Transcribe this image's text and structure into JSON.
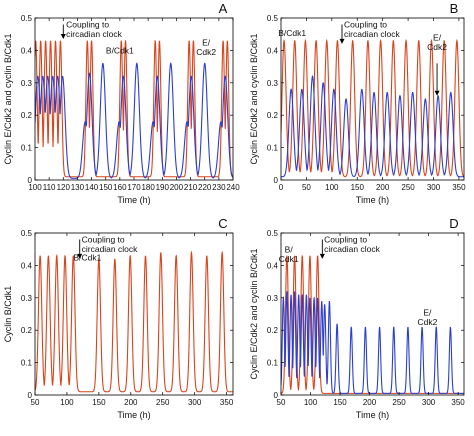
{
  "colors": {
    "cyclin_B_Cdk1": "#d9441c",
    "cyclin_E_Cdk2": "#2a3fd1",
    "axis": "#000000"
  },
  "chart_data": [
    {
      "id": "A",
      "type": "line",
      "panel_label": "A",
      "xlabel": "Time (h)",
      "ylabel": "Cyclin E/Cdk2 and cyclin B/Cdk1",
      "xlim": [
        100,
        240
      ],
      "ylim": [
        0,
        0.5
      ],
      "xticks": [
        100,
        110,
        120,
        130,
        140,
        150,
        160,
        170,
        180,
        190,
        200,
        210,
        220,
        230,
        240
      ],
      "yticks": [
        0,
        0.1,
        0.2,
        0.3,
        0.4,
        0.5
      ],
      "ytick_labels": [
        "0",
        "0.1",
        "0.2",
        "0.3",
        "0.4",
        "0.5"
      ],
      "annotations": [
        {
          "lines": [
            "Coupling to",
            "circadian clock"
          ],
          "arrow_x": 120,
          "arrow_from_y": 0.48,
          "arrow_to_y": 0.435,
          "text_x": 122,
          "text_y": 0.47
        },
        {
          "lines": [
            "B/Cdk1"
          ],
          "text_x": 160,
          "text_y": 0.39
        },
        {
          "lines": [
            "E/",
            "Cdk2"
          ],
          "text_x": 221,
          "text_y": 0.415
        }
      ],
      "series": [
        {
          "name": "B/Cdk1",
          "color": "#d9441c",
          "peaks": [
            {
              "t": 100.5,
              "h": 0.43
            },
            {
              "t": 104,
              "h": 0.43
            },
            {
              "t": 107.5,
              "h": 0.43
            },
            {
              "t": 111,
              "h": 0.43
            },
            {
              "t": 114.5,
              "h": 0.43
            },
            {
              "t": 118,
              "h": 0.43
            },
            {
              "t": 137,
              "h": 0.43
            },
            {
              "t": 140,
              "h": 0.43
            },
            {
              "t": 161,
              "h": 0.43
            },
            {
              "t": 164,
              "h": 0.43
            },
            {
              "t": 185,
              "h": 0.43
            },
            {
              "t": 188,
              "h": 0.43
            },
            {
              "t": 209,
              "h": 0.43
            },
            {
              "t": 212,
              "h": 0.43
            },
            {
              "t": 233,
              "h": 0.43
            },
            {
              "t": 236,
              "h": 0.43
            }
          ],
          "width": 1.0,
          "baseline": 0.01
        },
        {
          "name": "E/Cdk2",
          "color": "#2a3fd1",
          "peaks": [
            {
              "t": 102,
              "h": 0.32
            },
            {
              "t": 105.5,
              "h": 0.32
            },
            {
              "t": 109,
              "h": 0.32
            },
            {
              "t": 112.5,
              "h": 0.32
            },
            {
              "t": 116,
              "h": 0.32
            },
            {
              "t": 119.5,
              "h": 0.32
            },
            {
              "t": 135.5,
              "h": 0.18
            },
            {
              "t": 138.5,
              "h": 0.33
            },
            {
              "t": 148,
              "h": 0.36
            },
            {
              "t": 159.5,
              "h": 0.18
            },
            {
              "t": 162.5,
              "h": 0.32
            },
            {
              "t": 172,
              "h": 0.36
            },
            {
              "t": 183.5,
              "h": 0.18
            },
            {
              "t": 186.5,
              "h": 0.32
            },
            {
              "t": 196,
              "h": 0.36
            },
            {
              "t": 207.5,
              "h": 0.18
            },
            {
              "t": 210.5,
              "h": 0.32
            },
            {
              "t": 220,
              "h": 0.36
            },
            {
              "t": 231.5,
              "h": 0.18
            },
            {
              "t": 234.5,
              "h": 0.32
            }
          ],
          "width": 1.8,
          "baseline": 0.005
        }
      ]
    },
    {
      "id": "B",
      "type": "line",
      "panel_label": "B",
      "xlabel": "Time (h)",
      "ylabel": "Cyclin E/Cdk2 and cyclin B/Cdk1",
      "xlim": [
        0,
        360
      ],
      "ylim": [
        0,
        0.5
      ],
      "xticks": [
        0,
        50,
        100,
        150,
        200,
        250,
        300,
        350
      ],
      "yticks": [
        0,
        0.1,
        0.2,
        0.3,
        0.4,
        0.5
      ],
      "ytick_labels": [
        "0",
        "0.1",
        "0.2",
        "0.3",
        "0.4",
        "0.5"
      ],
      "annotations": [
        {
          "lines": [
            "Coupling to",
            "circadian clock"
          ],
          "arrow_x": 120,
          "arrow_from_y": 0.48,
          "arrow_to_y": 0.42,
          "text_x": 124,
          "text_y": 0.47
        },
        {
          "lines": [
            "B/Cdk1"
          ],
          "text_x": 22,
          "text_y": 0.445
        },
        {
          "lines": [
            "E/",
            "Cdk2"
          ],
          "text_x": 307,
          "text_y": 0.43,
          "arrow_x": 307,
          "arrow_from_y": 0.36,
          "arrow_to_y": 0.26
        }
      ],
      "series": [
        {
          "name": "B/Cdk1",
          "color": "#d9441c",
          "peaks": [
            {
              "t": 6,
              "h": 0.43
            },
            {
              "t": 27,
              "h": 0.43
            },
            {
              "t": 48,
              "h": 0.43
            },
            {
              "t": 69,
              "h": 0.43
            },
            {
              "t": 90,
              "h": 0.43
            },
            {
              "t": 111,
              "h": 0.43
            },
            {
              "t": 141,
              "h": 0.43
            },
            {
              "t": 171,
              "h": 0.43
            },
            {
              "t": 196,
              "h": 0.43
            },
            {
              "t": 221,
              "h": 0.43
            },
            {
              "t": 246,
              "h": 0.43
            },
            {
              "t": 271,
              "h": 0.43
            },
            {
              "t": 296,
              "h": 0.43
            },
            {
              "t": 321,
              "h": 0.43
            },
            {
              "t": 346,
              "h": 0.43
            }
          ],
          "width": 4.0,
          "baseline": 0.01
        },
        {
          "name": "E/Cdk2",
          "color": "#2a3fd1",
          "peaks": [
            {
              "t": 20,
              "h": 0.28
            },
            {
              "t": 41,
              "h": 0.28
            },
            {
              "t": 62,
              "h": 0.32
            },
            {
              "t": 83,
              "h": 0.3
            },
            {
              "t": 104,
              "h": 0.28
            },
            {
              "t": 128,
              "h": 0.25
            },
            {
              "t": 159,
              "h": 0.28
            },
            {
              "t": 183,
              "h": 0.27
            },
            {
              "t": 209,
              "h": 0.27
            },
            {
              "t": 234,
              "h": 0.26
            },
            {
              "t": 259,
              "h": 0.27
            },
            {
              "t": 284,
              "h": 0.25
            },
            {
              "t": 309,
              "h": 0.26
            },
            {
              "t": 334,
              "h": 0.27
            }
          ],
          "width": 4.5,
          "baseline": 0.01
        }
      ]
    },
    {
      "id": "C",
      "type": "line",
      "panel_label": "C",
      "xlabel": "Time (h)",
      "ylabel": "Cyclin B/Cdk1",
      "xlim": [
        50,
        360
      ],
      "ylim": [
        0,
        0.5
      ],
      "xticks": [
        50,
        100,
        150,
        200,
        250,
        300,
        350
      ],
      "yticks": [
        0,
        0.1,
        0.2,
        0.3,
        0.4,
        0.5
      ],
      "ytick_labels": [
        "0",
        "0.1",
        "0.2",
        "0.3",
        "0.4",
        "0.5"
      ],
      "annotations": [
        {
          "lines": [
            "Coupling to",
            "circadian clock"
          ],
          "arrow_x": 120,
          "arrow_from_y": 0.48,
          "arrow_to_y": 0.42,
          "text_x": 123,
          "text_y": 0.47
        },
        {
          "lines": [
            "B/Cdk1"
          ],
          "text_x": 132,
          "text_y": 0.415
        }
      ],
      "series": [
        {
          "name": "B/Cdk1",
          "color": "#d9441c",
          "peaks": [
            {
              "t": 58,
              "h": 0.43
            },
            {
              "t": 71,
              "h": 0.43
            },
            {
              "t": 84,
              "h": 0.43
            },
            {
              "t": 97,
              "h": 0.43
            },
            {
              "t": 110,
              "h": 0.43
            },
            {
              "t": 150,
              "h": 0.42
            },
            {
              "t": 175,
              "h": 0.42
            },
            {
              "t": 199,
              "h": 0.43
            },
            {
              "t": 223,
              "h": 0.43
            },
            {
              "t": 247,
              "h": 0.44
            },
            {
              "t": 271,
              "h": 0.43
            },
            {
              "t": 295,
              "h": 0.44
            },
            {
              "t": 319,
              "h": 0.43
            },
            {
              "t": 343,
              "h": 0.44
            }
          ],
          "width": 2.6,
          "baseline": 0.01
        }
      ]
    },
    {
      "id": "D",
      "type": "line",
      "panel_label": "D",
      "xlabel": "Time (h)",
      "ylabel": "Cyclin E/Cdk2 and cyclin B/Cdk1",
      "xlim": [
        50,
        360
      ],
      "ylim": [
        0,
        0.5
      ],
      "xticks": [
        50,
        100,
        150,
        200,
        250,
        300,
        350
      ],
      "yticks": [
        0,
        0.1,
        0.2,
        0.3,
        0.4,
        0.5
      ],
      "ytick_labels": [
        "0",
        "0.1",
        "0.2",
        "0.3",
        "0.4",
        "0.5"
      ],
      "annotations": [
        {
          "lines": [
            "Coupling to",
            "circadian clock"
          ],
          "arrow_x": 120,
          "arrow_from_y": 0.48,
          "arrow_to_y": 0.42,
          "text_x": 123,
          "text_y": 0.47
        },
        {
          "lines": [
            "B/",
            "Cdk1"
          ],
          "text_x": 63,
          "text_y": 0.44
        },
        {
          "lines": [
            "E/",
            "Cdk2"
          ],
          "text_x": 298,
          "text_y": 0.245
        }
      ],
      "series": [
        {
          "name": "B/Cdk1",
          "color": "#d9441c",
          "peaks": [
            {
              "t": 60,
              "h": 0.43
            },
            {
              "t": 73,
              "h": 0.43
            },
            {
              "t": 86,
              "h": 0.43
            },
            {
              "t": 99,
              "h": 0.43
            },
            {
              "t": 112,
              "h": 0.43
            }
          ],
          "width": 2.4,
          "baseline": 0.005
        },
        {
          "name": "E/Cdk2",
          "color": "#2a3fd1",
          "peaks": [
            {
              "t": 54,
              "h": 0.3
            },
            {
              "t": 60,
              "h": 0.32
            },
            {
              "t": 67,
              "h": 0.31
            },
            {
              "t": 73,
              "h": 0.32
            },
            {
              "t": 80,
              "h": 0.31
            },
            {
              "t": 86,
              "h": 0.31
            },
            {
              "t": 93,
              "h": 0.31
            },
            {
              "t": 99,
              "h": 0.3
            },
            {
              "t": 106,
              "h": 0.3
            },
            {
              "t": 112,
              "h": 0.3
            },
            {
              "t": 119,
              "h": 0.29
            },
            {
              "t": 124,
              "h": 0.28
            },
            {
              "t": 132,
              "h": 0.29
            },
            {
              "t": 145,
              "h": 0.22
            },
            {
              "t": 169,
              "h": 0.21
            },
            {
              "t": 193,
              "h": 0.21
            },
            {
              "t": 217,
              "h": 0.21
            },
            {
              "t": 241,
              "h": 0.21
            },
            {
              "t": 265,
              "h": 0.21
            },
            {
              "t": 289,
              "h": 0.21
            },
            {
              "t": 313,
              "h": 0.21
            },
            {
              "t": 337,
              "h": 0.21
            }
          ],
          "width": 1.8,
          "baseline": 0.005
        }
      ]
    }
  ]
}
